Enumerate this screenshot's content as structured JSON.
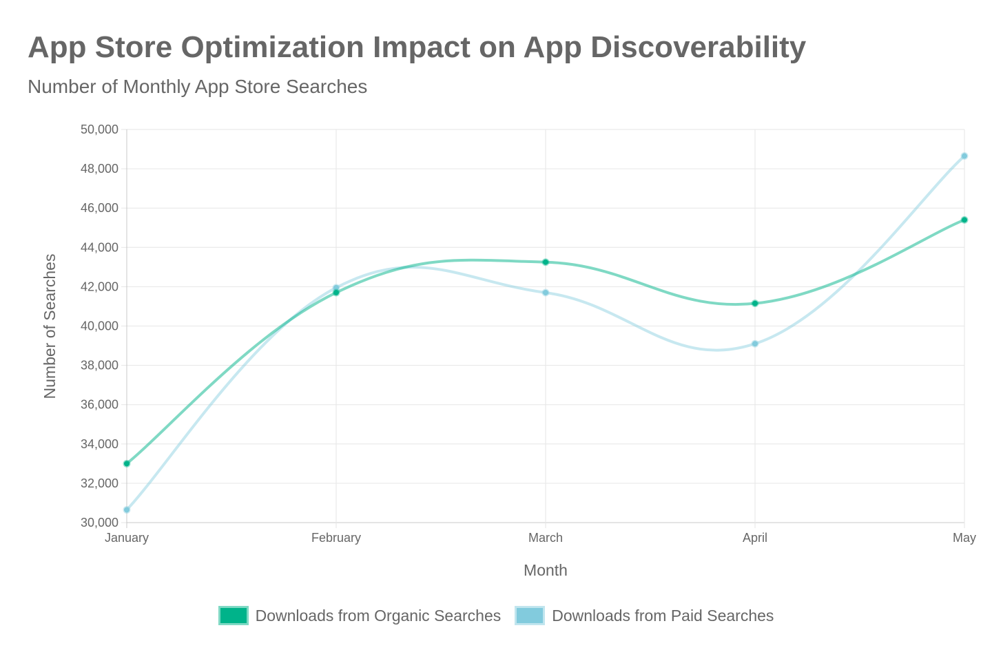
{
  "chart_data": {
    "type": "line",
    "title": "App Store Optimization Impact on App Discoverability",
    "subtitle": "Number of Monthly App Store Searches",
    "xlabel": "Month",
    "ylabel": "Number of Searches",
    "categories": [
      "January",
      "February",
      "March",
      "April",
      "May"
    ],
    "ylim": [
      30000,
      50000
    ],
    "yticks": [
      "30,000",
      "32,000",
      "34,000",
      "36,000",
      "38,000",
      "40,000",
      "42,000",
      "44,000",
      "46,000",
      "48,000",
      "50,000"
    ],
    "grid": true,
    "legend_position": "bottom",
    "series": [
      {
        "name": "Downloads from Organic Searches",
        "values": [
          33000,
          41700,
          43250,
          41150,
          45400
        ],
        "color": "#00b38a"
      },
      {
        "name": "Downloads from Paid Searches",
        "values": [
          30650,
          41950,
          41700,
          39100,
          48650
        ],
        "color": "#82cbdd"
      }
    ]
  }
}
